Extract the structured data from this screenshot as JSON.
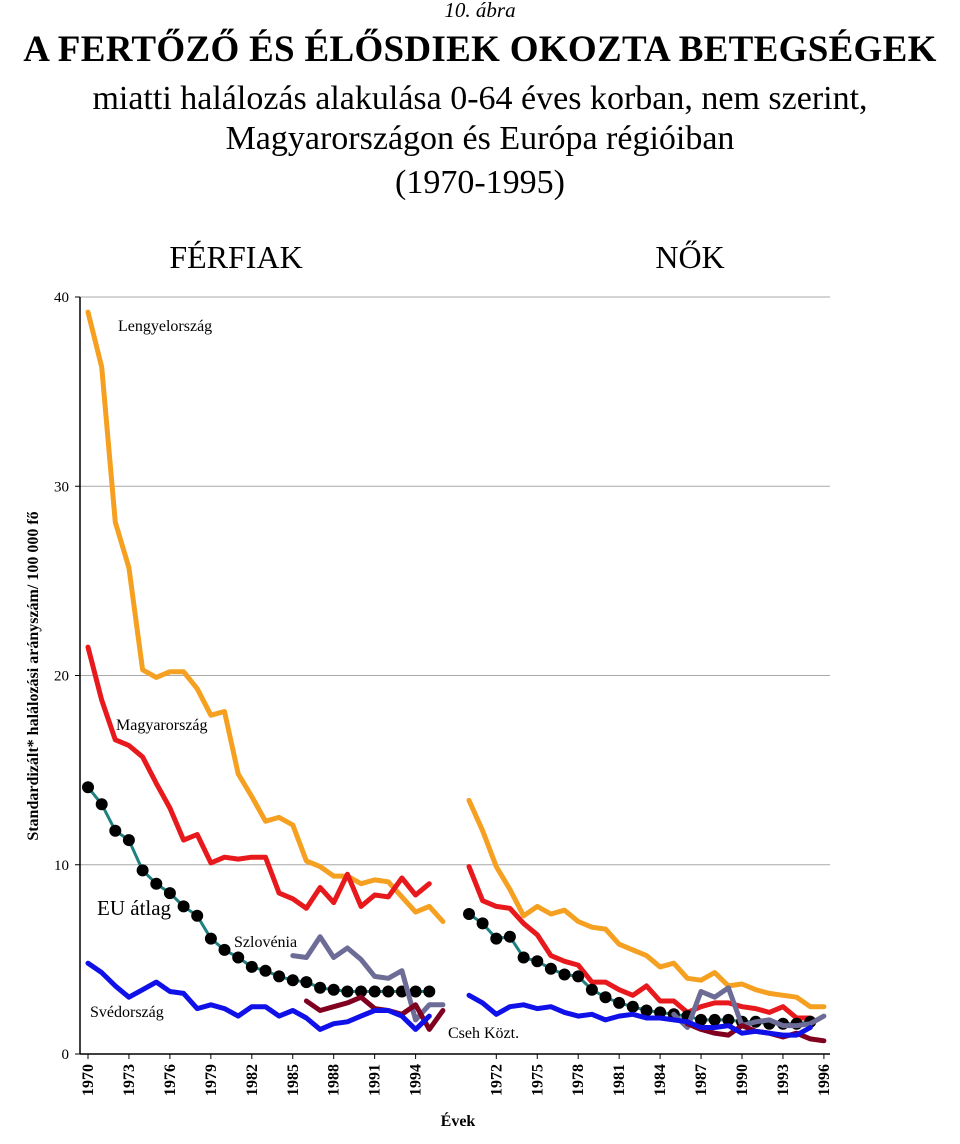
{
  "figure_label": "10. ábra",
  "title_line1": "A FERTŐZŐ ÉS ÉLŐSDIEK OKOZTA BETEGSÉGEK",
  "title_line2": "miatti halálozás alakulása 0-64 éves korban, nem szerint,",
  "title_line3": "Magyarországon és Európa régióiban",
  "title_line4": "(1970-1995)",
  "chart_data": {
    "type": "line",
    "ylabel": "Standardizált* halálozási arányszám/ 100 000 fő",
    "xlabel": "Évek",
    "ylim": [
      0,
      40
    ],
    "yticks": [
      0,
      10,
      20,
      30,
      40
    ],
    "grid": true,
    "panels": [
      {
        "title": "FÉRFIAK",
        "x_start": 1970,
        "xticks": [
          "1970",
          "1973",
          "1976",
          "1979",
          "1982",
          "1985",
          "1988",
          "1991",
          "1994"
        ],
        "series": [
          {
            "name": "Lengyelország",
            "color": "#F5A020",
            "width": 5,
            "start": 1970,
            "values": [
              39.2,
              36.3,
              28.1,
              25.7,
              20.3,
              19.9,
              20.2,
              20.2,
              19.3,
              17.9,
              18.1,
              14.8,
              13.6,
              12.3,
              12.5,
              12.1,
              10.2,
              9.9,
              9.4,
              9.4,
              9.0,
              9.2,
              9.1,
              8.3,
              7.5,
              7.8,
              7.0
            ]
          },
          {
            "name": "Magyarország",
            "color": "#E8191C",
            "width": 5,
            "start": 1970,
            "values": [
              21.5,
              18.7,
              16.6,
              16.3,
              15.7,
              14.3,
              13.0,
              11.3,
              11.6,
              10.1,
              10.4,
              10.3,
              10.4,
              10.4,
              8.5,
              8.2,
              7.7,
              8.8,
              8.0,
              9.5,
              7.8,
              8.4,
              8.3,
              9.3,
              8.4,
              9.0
            ]
          },
          {
            "name": "EU átlag",
            "color": "#1E8080",
            "width": 3,
            "markers": true,
            "start": 1970,
            "values": [
              14.1,
              13.2,
              11.8,
              11.3,
              9.7,
              9.0,
              8.5,
              7.8,
              7.3,
              6.1,
              5.5,
              5.1,
              4.6,
              4.4,
              4.1,
              3.9,
              3.8,
              3.5,
              3.4,
              3.3,
              3.3,
              3.3,
              3.3,
              3.3,
              3.3,
              3.3
            ]
          },
          {
            "name": "Szlovénia",
            "color": "#6C6C96",
            "width": 5,
            "start": 1985,
            "values": [
              5.2,
              5.1,
              6.2,
              5.1,
              5.6,
              5.0,
              4.1,
              4.0,
              4.4,
              1.8,
              2.6,
              2.6
            ]
          },
          {
            "name": "Cseh Közt.",
            "color": "#800020",
            "width": 5,
            "start": 1986,
            "values": [
              2.8,
              2.3,
              2.5,
              2.7,
              3.0,
              2.4,
              2.3,
              2.1,
              2.6,
              1.3,
              2.3
            ]
          },
          {
            "name": "Svédország",
            "color": "#1010E8",
            "width": 5,
            "start": 1970,
            "values": [
              4.8,
              4.3,
              3.6,
              3.0,
              3.4,
              3.8,
              3.3,
              3.2,
              2.4,
              2.6,
              2.4,
              2.0,
              2.5,
              2.5,
              2.0,
              2.3,
              1.9,
              1.3,
              1.6,
              1.7,
              2.0,
              2.3,
              2.3,
              2.0,
              1.3,
              2.0
            ]
          }
        ],
        "annotations": [
          "Lengyelország",
          "Magyarország",
          "EU átlag",
          "Szlovénia",
          "Svédország"
        ]
      },
      {
        "title": "NŐK",
        "x_start": 1970,
        "xticks": [
          "1972",
          "1975",
          "1978",
          "1981",
          "1984",
          "1987",
          "1990",
          "1993",
          "1996"
        ],
        "series": [
          {
            "name": "Lengyelország",
            "color": "#F5A020",
            "width": 5,
            "start": 1970,
            "values": [
              13.4,
              11.8,
              9.9,
              8.7,
              7.3,
              7.8,
              7.4,
              7.6,
              7.0,
              6.7,
              6.6,
              5.8,
              5.5,
              5.2,
              4.6,
              4.8,
              4.0,
              3.9,
              4.3,
              3.6,
              3.7,
              3.4,
              3.2,
              3.1,
              3.0,
              2.5,
              2.5
            ]
          },
          {
            "name": "Magyarország",
            "color": "#E8191C",
            "width": 5,
            "start": 1970,
            "values": [
              9.9,
              8.1,
              7.8,
              7.7,
              6.9,
              6.3,
              5.2,
              4.9,
              4.7,
              3.8,
              3.8,
              3.4,
              3.1,
              3.6,
              2.8,
              2.8,
              2.2,
              2.5,
              2.7,
              2.7,
              2.5,
              2.4,
              2.2,
              2.5,
              1.9,
              1.9
            ]
          },
          {
            "name": "EU átlag",
            "color": "#1E8080",
            "width": 3,
            "markers": true,
            "start": 1970,
            "values": [
              7.4,
              6.9,
              6.1,
              6.2,
              5.1,
              4.9,
              4.5,
              4.2,
              4.1,
              3.4,
              3.0,
              2.7,
              2.5,
              2.3,
              2.2,
              2.1,
              2.0,
              1.8,
              1.8,
              1.8,
              1.7,
              1.7,
              1.6,
              1.6,
              1.6,
              1.7
            ]
          },
          {
            "name": "Szlovénia",
            "color": "#6C6C96",
            "width": 5,
            "start": 1985,
            "values": [
              2.1,
              1.4,
              3.3,
              3.0,
              3.5,
              1.5,
              1.7,
              1.8,
              1.5,
              1.5,
              1.6,
              2.0
            ]
          },
          {
            "name": "Cseh Közt.",
            "color": "#800020",
            "width": 5,
            "start": 1986,
            "values": [
              1.6,
              1.3,
              1.1,
              1.0,
              1.5,
              1.2,
              1.1,
              0.9,
              1.1,
              0.8,
              0.7
            ]
          },
          {
            "name": "Svédország",
            "color": "#1010E8",
            "width": 5,
            "start": 1970,
            "values": [
              3.1,
              2.7,
              2.1,
              2.5,
              2.6,
              2.4,
              2.5,
              2.2,
              2.0,
              2.1,
              1.8,
              2.0,
              2.1,
              1.9,
              1.9,
              1.8,
              1.7,
              1.4,
              1.4,
              1.5,
              1.1,
              1.2,
              1.1,
              1.0,
              1.0,
              1.4
            ]
          }
        ],
        "annotations": [
          "Cseh Közt."
        ]
      }
    ]
  }
}
